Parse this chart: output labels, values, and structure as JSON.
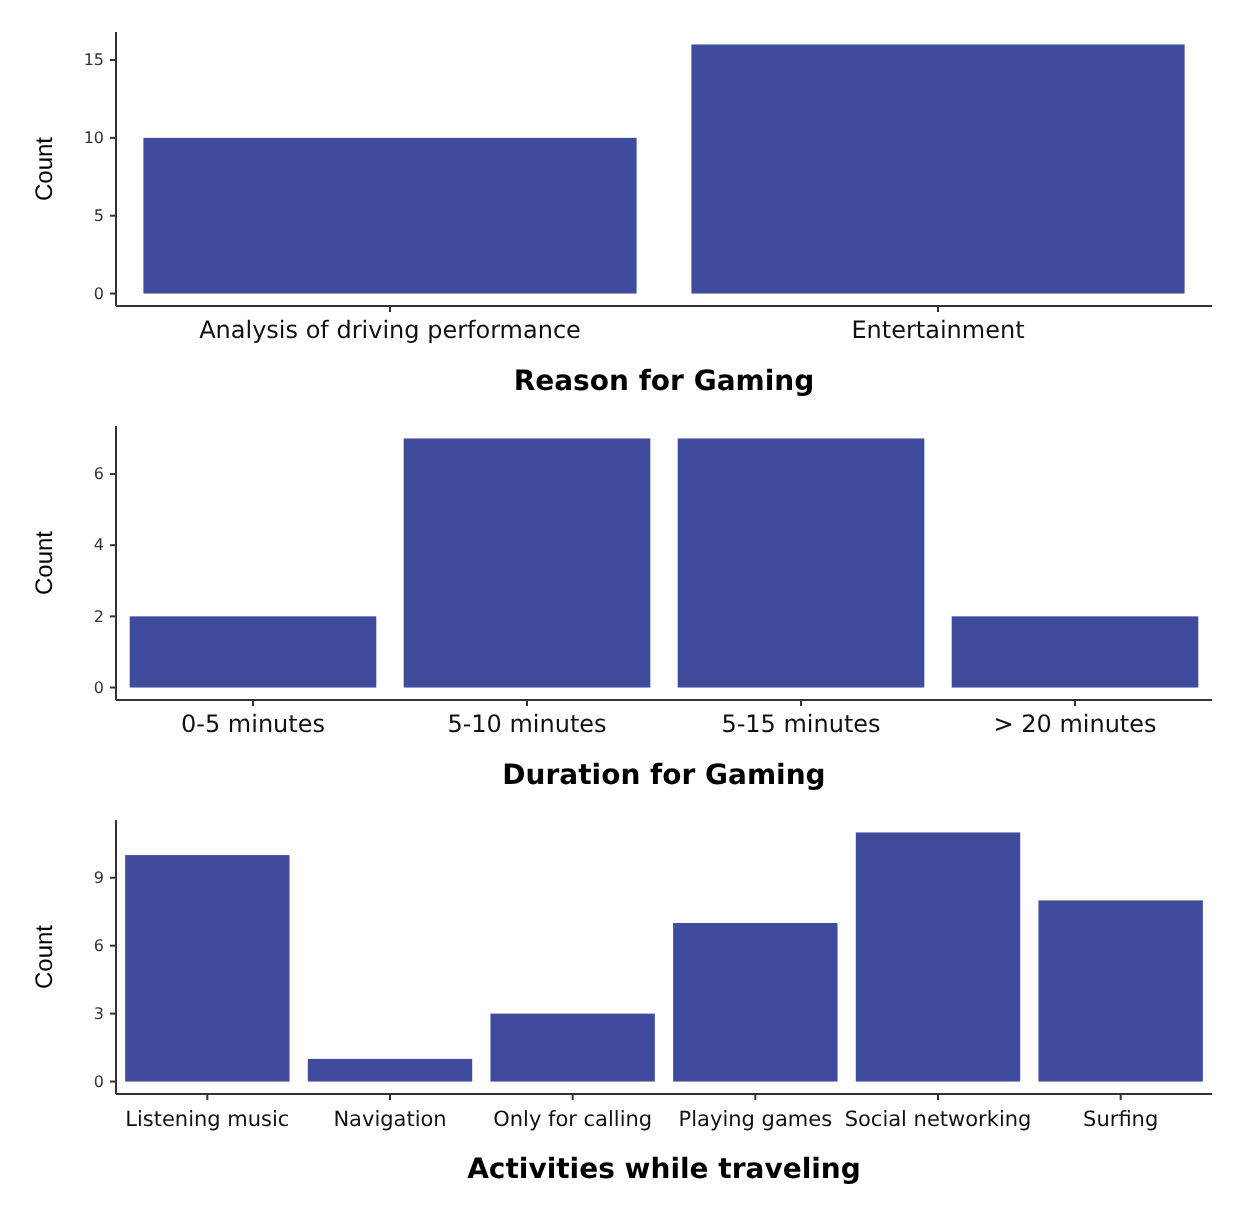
{
  "chart_data": [
    {
      "type": "bar",
      "xlabel": "Reason for Gaming",
      "ylabel": "Count",
      "categories": [
        "Analysis of driving performance",
        "Entertainment"
      ],
      "values": [
        10,
        16
      ],
      "color": "#3f4b9c",
      "ylim": [
        -0.8,
        16.8
      ],
      "yticks": [
        0,
        5,
        10,
        15
      ],
      "grid": false
    },
    {
      "type": "bar",
      "xlabel": "Duration for Gaming",
      "ylabel": "Count",
      "categories": [
        "0-5 minutes",
        "5-10 minutes",
        "5-15 minutes",
        "> 20 minutes"
      ],
      "values": [
        2,
        7,
        7,
        2
      ],
      "color": "#3f4b9c",
      "ylim": [
        -0.35,
        7.35
      ],
      "yticks": [
        0,
        2,
        4,
        6
      ],
      "grid": false
    },
    {
      "type": "bar",
      "xlabel": "Activities while traveling",
      "ylabel": "Count",
      "categories": [
        "Listening music",
        "Navigation",
        "Only for calling",
        "Playing games",
        "Social networking",
        "Surfing"
      ],
      "values": [
        10,
        1,
        3,
        7,
        11,
        8
      ],
      "color": "#3f4b9c",
      "ylim": [
        -0.55,
        11.55
      ],
      "yticks": [
        0,
        3,
        6,
        9
      ],
      "grid": false
    }
  ]
}
